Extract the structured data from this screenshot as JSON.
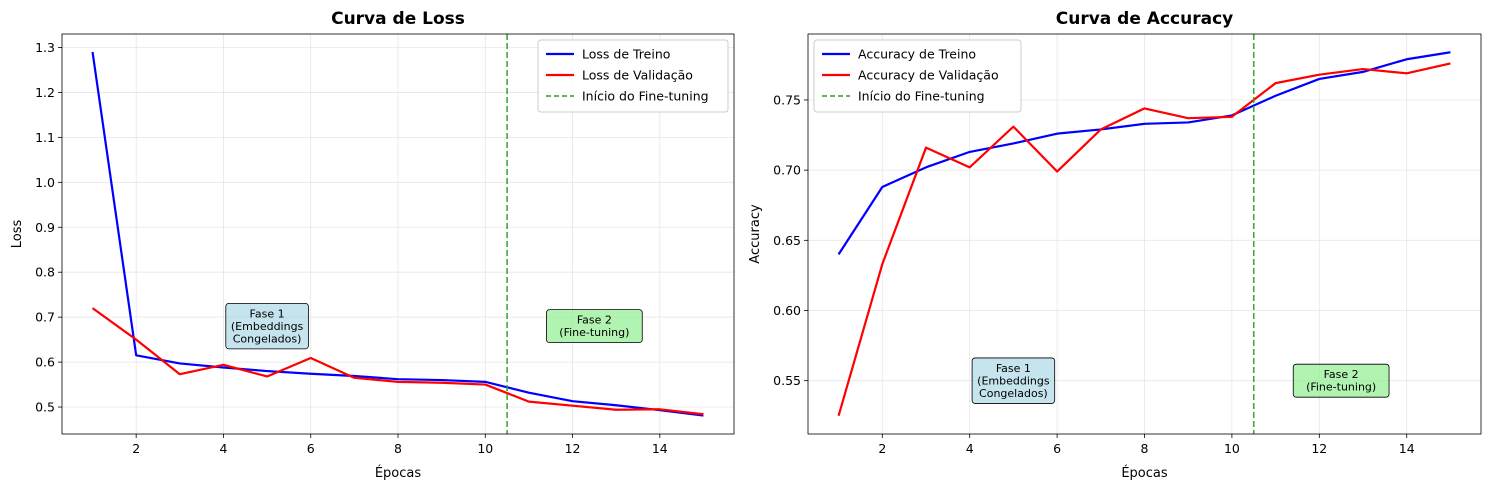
{
  "chart_data": [
    {
      "type": "line",
      "title": "Curva de Loss",
      "xlabel": "Épocas",
      "ylabel": "Loss",
      "xlim": [
        0.3,
        15.7
      ],
      "ylim": [
        0.44,
        1.33
      ],
      "xticks": [
        2,
        4,
        6,
        8,
        10,
        12,
        14
      ],
      "yticks": [
        0.5,
        0.6,
        0.7,
        0.8,
        0.9,
        1.0,
        1.1,
        1.2,
        1.3
      ],
      "ytick_decimals": 1,
      "grid": true,
      "legend_position": "top-right",
      "x": [
        1,
        2,
        3,
        4,
        5,
        6,
        7,
        8,
        9,
        10,
        11,
        12,
        13,
        14,
        15
      ],
      "series": [
        {
          "name": "Loss de Treino",
          "color": "#0000ff",
          "style": "solid",
          "values": [
            1.29,
            0.615,
            0.597,
            0.588,
            0.58,
            0.574,
            0.569,
            0.562,
            0.56,
            0.556,
            0.532,
            0.513,
            0.504,
            0.493,
            0.481
          ]
        },
        {
          "name": "Loss de Validação",
          "color": "#ff0000",
          "style": "solid",
          "values": [
            0.72,
            0.65,
            0.573,
            0.594,
            0.568,
            0.609,
            0.565,
            0.556,
            0.554,
            0.55,
            0.512,
            0.503,
            0.494,
            0.495,
            0.484
          ]
        }
      ],
      "vline": {
        "x": 10.5,
        "name": "Início do Fine-tuning",
        "color": "#2ca02c"
      },
      "annotations": [
        {
          "text": "Fase 1\n(Embeddings\nCongelados)",
          "x": 5,
          "y": 0.68,
          "fill": "#add8e6"
        },
        {
          "text": "Fase 2\n(Fine-tuning)",
          "x": 12.5,
          "y": 0.68,
          "fill": "#90ee90"
        }
      ]
    },
    {
      "type": "line",
      "title": "Curva de Accuracy",
      "xlabel": "Épocas",
      "ylabel": "Accuracy",
      "xlim": [
        0.3,
        15.7
      ],
      "ylim": [
        0.512,
        0.797
      ],
      "xticks": [
        2,
        4,
        6,
        8,
        10,
        12,
        14
      ],
      "yticks": [
        0.55,
        0.6,
        0.65,
        0.7,
        0.75
      ],
      "ytick_decimals": 2,
      "grid": true,
      "legend_position": "top-left",
      "x": [
        1,
        2,
        3,
        4,
        5,
        6,
        7,
        8,
        9,
        10,
        11,
        12,
        13,
        14,
        15
      ],
      "series": [
        {
          "name": "Accuracy de Treino",
          "color": "#0000ff",
          "style": "solid",
          "values": [
            0.64,
            0.688,
            0.702,
            0.713,
            0.719,
            0.726,
            0.729,
            0.733,
            0.734,
            0.739,
            0.753,
            0.765,
            0.77,
            0.779,
            0.784
          ]
        },
        {
          "name": "Accuracy de Validação",
          "color": "#ff0000",
          "style": "solid",
          "values": [
            0.525,
            0.633,
            0.716,
            0.702,
            0.731,
            0.699,
            0.729,
            0.744,
            0.737,
            0.738,
            0.762,
            0.768,
            0.772,
            0.769,
            0.776
          ]
        }
      ],
      "vline": {
        "x": 10.5,
        "name": "Início do Fine-tuning",
        "color": "#2ca02c"
      },
      "annotations": [
        {
          "text": "Fase 1\n(Embeddings\nCongelados)",
          "x": 5,
          "y": 0.55,
          "fill": "#add8e6"
        },
        {
          "text": "Fase 2\n(Fine-tuning)",
          "x": 12.5,
          "y": 0.55,
          "fill": "#90ee90"
        }
      ]
    }
  ]
}
